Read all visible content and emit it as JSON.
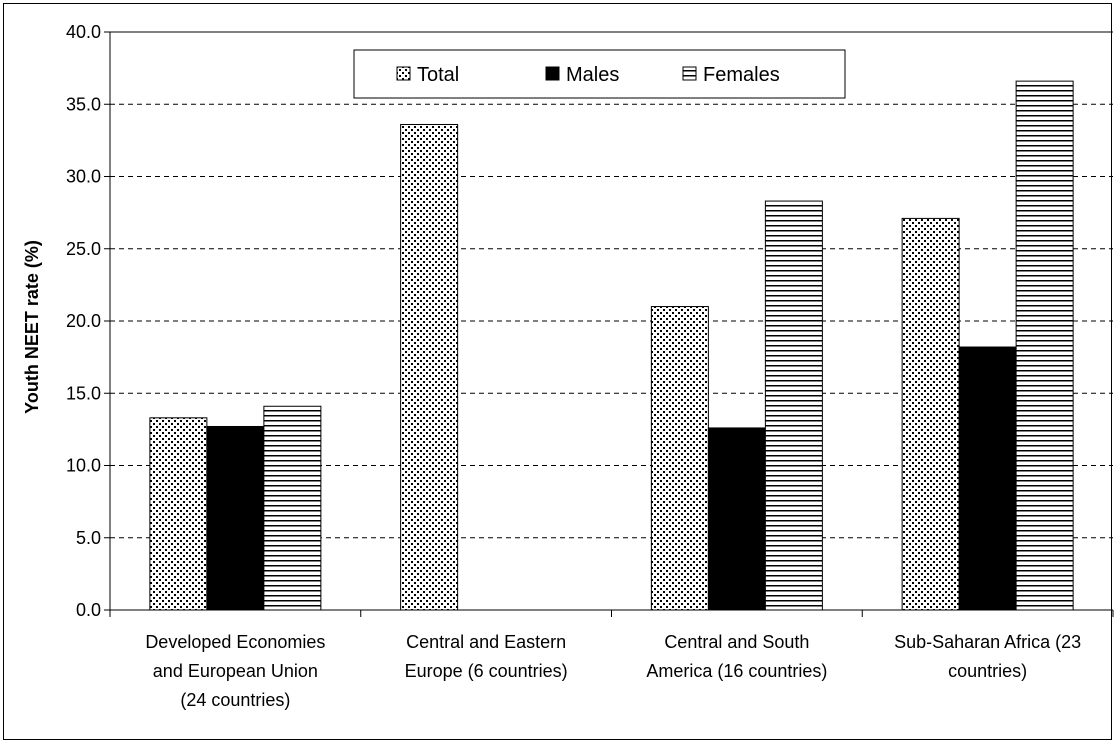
{
  "chart_data": {
    "type": "bar",
    "title": "",
    "xlabel": "",
    "ylabel": "Youth NEET rate (%)",
    "ylim": [
      0,
      40
    ],
    "yticks": [
      "0.0",
      "5.0",
      "10.0",
      "15.0",
      "20.0",
      "25.0",
      "30.0",
      "35.0",
      "40.0"
    ],
    "grid": "horizontal-dashed",
    "legend_position": "top",
    "categories": [
      [
        "Developed Economies",
        "and European Union",
        "(24 countries)"
      ],
      [
        "Central and Eastern",
        "Europe (6 countries)"
      ],
      [
        "Central and South",
        "America (16 countries)"
      ],
      [
        "Sub-Saharan Africa (23",
        "countries)"
      ]
    ],
    "series": [
      {
        "name": "Total",
        "pattern": "dots",
        "values": [
          13.3,
          33.6,
          21.0,
          27.1
        ]
      },
      {
        "name": "Males",
        "pattern": "solid",
        "color": "#000000",
        "values": [
          12.7,
          null,
          12.6,
          18.2
        ]
      },
      {
        "name": "Females",
        "pattern": "hlines",
        "values": [
          14.1,
          null,
          28.3,
          36.6
        ]
      }
    ]
  }
}
